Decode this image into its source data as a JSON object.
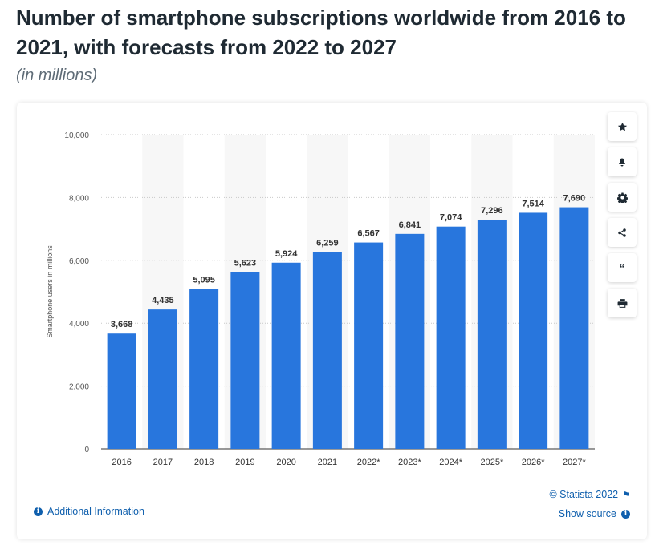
{
  "header": {
    "title": "Number of smartphone subscriptions worldwide from 2016 to 2021, with forecasts from 2022 to 2027",
    "subtitle": "(in millions)"
  },
  "footer": {
    "additional_info": "Additional Information",
    "copyright": "© Statista 2022",
    "show_source": "Show source"
  },
  "toolbar": {
    "icons": [
      "star-icon",
      "bell-icon",
      "gear-icon",
      "share-icon",
      "quote-icon",
      "print-icon"
    ]
  },
  "colors": {
    "bar": "#2876dd",
    "band": "#f7f7f7",
    "link": "#0f5fad",
    "title": "#1f2a33"
  },
  "chart_data": {
    "type": "bar",
    "title": "",
    "xlabel": "",
    "ylabel": "Smartphone users in millions",
    "categories": [
      "2016",
      "2017",
      "2018",
      "2019",
      "2020",
      "2021",
      "2022*",
      "2023*",
      "2024*",
      "2025*",
      "2026*",
      "2027*"
    ],
    "values": [
      3668,
      4435,
      5095,
      5623,
      5924,
      6259,
      6567,
      6841,
      7074,
      7296,
      7514,
      7690
    ],
    "value_labels": [
      "3,668",
      "4,435",
      "5,095",
      "5,623",
      "5,924",
      "6,259",
      "6,567",
      "6,841",
      "7,074",
      "7,296",
      "7,514",
      "7,690"
    ],
    "yticks": [
      0,
      2000,
      4000,
      6000,
      8000,
      10000
    ],
    "ytick_labels": [
      "0",
      "2,000",
      "4,000",
      "6,000",
      "8,000",
      "10,000"
    ],
    "ylim": [
      0,
      10000
    ],
    "grid": true,
    "legend": "none"
  }
}
